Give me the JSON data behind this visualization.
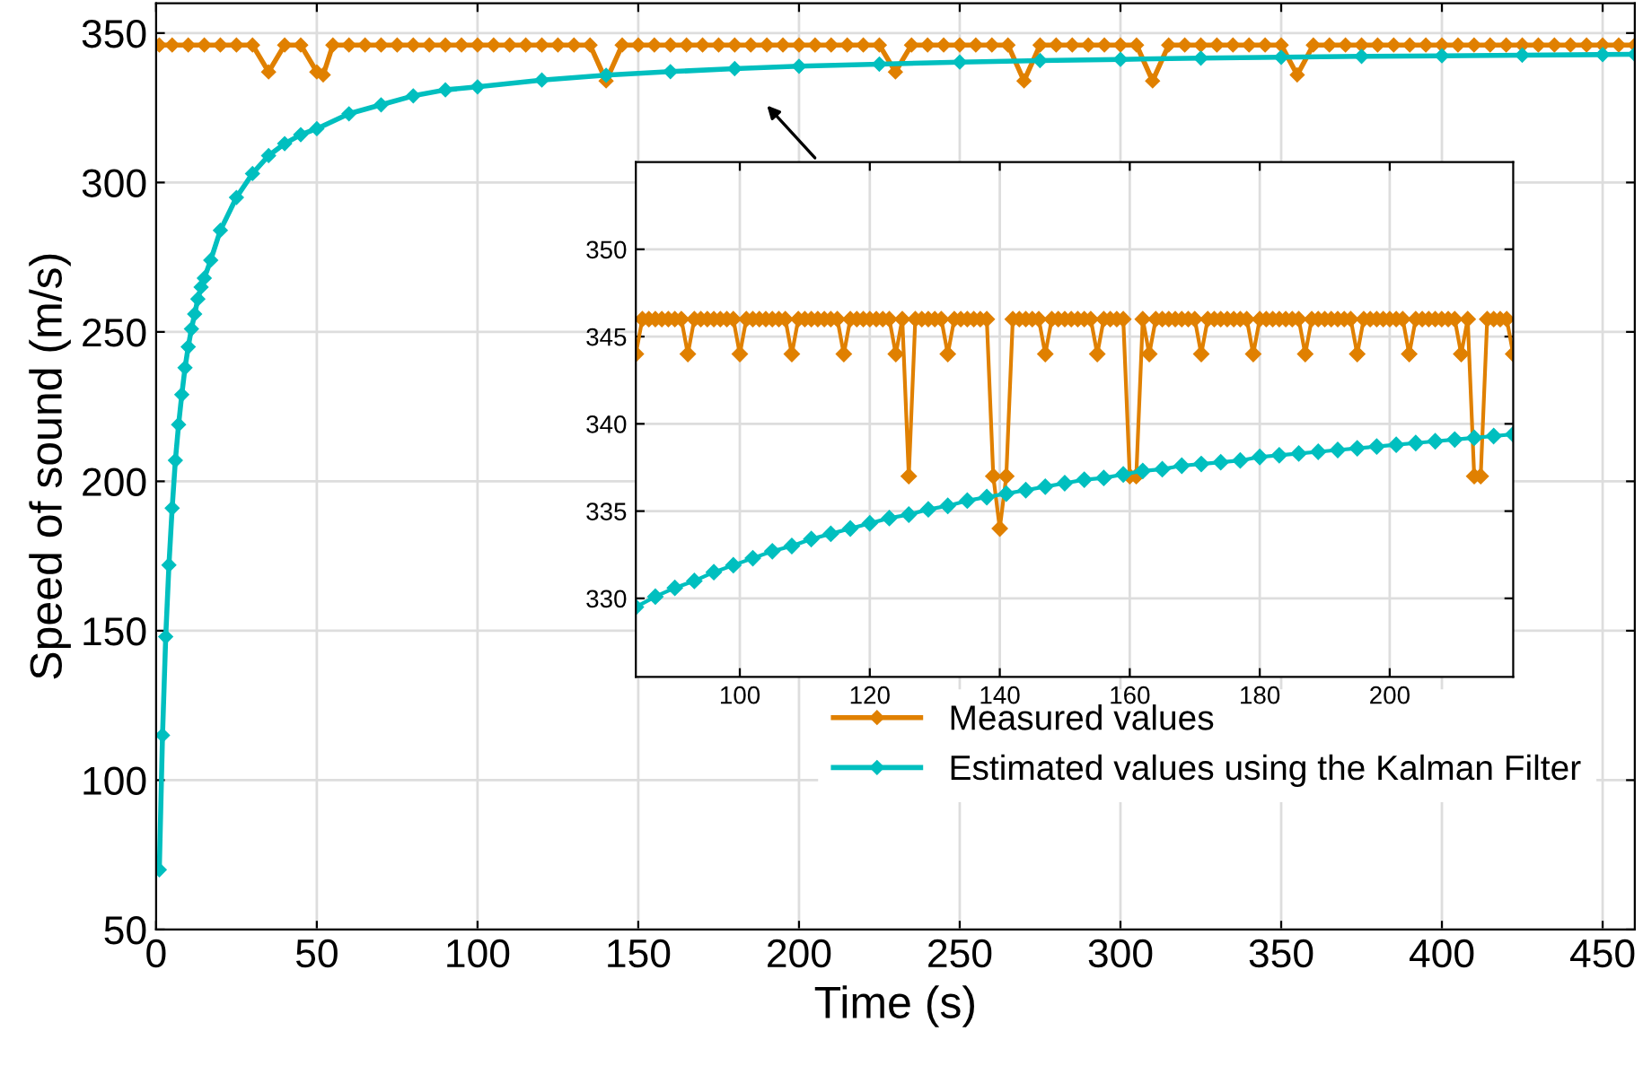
{
  "chart_data": [
    {
      "type": "line",
      "xlabel": "Time (s)",
      "ylabel": "Speed of sound (m/s)",
      "xlim": [
        0,
        460
      ],
      "ylim": [
        50,
        360
      ],
      "xticks": [
        0,
        50,
        100,
        150,
        200,
        250,
        300,
        350,
        400,
        450
      ],
      "yticks": [
        50,
        100,
        150,
        200,
        250,
        300,
        350
      ],
      "grid": true,
      "legend": "bottom right",
      "marker": "diamond",
      "line_style": "solid",
      "series": [
        {
          "name": "Measured values",
          "color": "#e08000",
          "x": [
            1,
            5,
            10,
            15,
            20,
            25,
            30,
            35,
            40,
            45,
            50,
            52,
            55,
            60,
            65,
            70,
            75,
            80,
            85,
            90,
            95,
            100,
            105,
            110,
            115,
            120,
            125,
            130,
            135,
            140,
            145,
            150,
            155,
            160,
            165,
            170,
            175,
            180,
            185,
            190,
            195,
            200,
            205,
            210,
            215,
            220,
            225,
            230,
            235,
            240,
            245,
            250,
            255,
            260,
            265,
            270,
            275,
            280,
            285,
            290,
            295,
            300,
            305,
            310,
            315,
            320,
            325,
            330,
            335,
            340,
            345,
            350,
            355,
            360,
            365,
            370,
            375,
            380,
            385,
            390,
            395,
            400,
            405,
            410,
            415,
            420,
            425,
            430,
            435,
            440,
            445,
            450,
            455,
            460
          ],
          "values": [
            346,
            346,
            346,
            346,
            346,
            346,
            346,
            337,
            346,
            346,
            337,
            336,
            346,
            346,
            346,
            346,
            346,
            346,
            346,
            346,
            346,
            346,
            346,
            346,
            346,
            346,
            346,
            346,
            346,
            334,
            346,
            346,
            346,
            346,
            346,
            346,
            346,
            346,
            346,
            346,
            346,
            346,
            346,
            346,
            346,
            346,
            346,
            337,
            346,
            346,
            346,
            346,
            346,
            346,
            346,
            334,
            346,
            346,
            346,
            346,
            346,
            346,
            346,
            334,
            346,
            346,
            346,
            346,
            346,
            346,
            346,
            346,
            336,
            346,
            346,
            346,
            346,
            346,
            346,
            346,
            346,
            346,
            346,
            346,
            346,
            346,
            346,
            346,
            346,
            346,
            346,
            346,
            346,
            346
          ]
        },
        {
          "name": "Estimated values using the Kalman Filter",
          "color": "#00bfbf",
          "x": [
            1,
            2,
            3,
            4,
            5,
            6,
            7,
            8,
            9,
            10,
            11,
            12,
            13,
            14,
            15,
            17,
            20,
            25,
            30,
            35,
            40,
            45,
            50,
            60,
            70,
            80,
            90,
            100,
            120,
            140,
            160,
            180,
            200,
            225,
            250,
            275,
            300,
            325,
            350,
            375,
            400,
            425,
            450,
            460
          ],
          "values": [
            70,
            115,
            148,
            172,
            191,
            207,
            219,
            229,
            238,
            245,
            251,
            256,
            261,
            265,
            268,
            274,
            284,
            295,
            303,
            309,
            313,
            316,
            318,
            323,
            326,
            329,
            331,
            332,
            334.3,
            335.9,
            337.1,
            338.1,
            338.9,
            339.6,
            340.3,
            340.8,
            341.2,
            341.6,
            341.9,
            342.2,
            342.4,
            342.6,
            342.8,
            342.9
          ]
        }
      ]
    },
    {
      "type": "line",
      "xlim": [
        84,
        219
      ],
      "ylim": [
        325.5,
        355
      ],
      "xticks": [
        100,
        120,
        140,
        160,
        180,
        200
      ],
      "yticks": [
        330,
        335,
        340,
        345,
        350
      ],
      "grid": true,
      "marker": "diamond",
      "line_style": "solid",
      "series": [
        {
          "color": "#e08000",
          "x": [
            84,
            85,
            86,
            87,
            88,
            89,
            90,
            91,
            92,
            93,
            94,
            95,
            96,
            97,
            98,
            99,
            100,
            101,
            102,
            103,
            104,
            105,
            106,
            107,
            108,
            109,
            110,
            111,
            112,
            113,
            114,
            115,
            116,
            117,
            118,
            119,
            120,
            121,
            122,
            123,
            124,
            125,
            126,
            127,
            128,
            129,
            130,
            131,
            132,
            133,
            134,
            135,
            136,
            137,
            138,
            139,
            140,
            141,
            142,
            143,
            144,
            145,
            146,
            147,
            148,
            149,
            150,
            151,
            152,
            153,
            154,
            155,
            156,
            157,
            158,
            159,
            160,
            161,
            162,
            163,
            164,
            165,
            166,
            167,
            168,
            169,
            170,
            171,
            172,
            173,
            174,
            175,
            176,
            177,
            178,
            179,
            180,
            181,
            182,
            183,
            184,
            185,
            186,
            187,
            188,
            189,
            190,
            191,
            192,
            193,
            194,
            195,
            196,
            197,
            198,
            199,
            200,
            201,
            202,
            203,
            204,
            205,
            206,
            207,
            208,
            209,
            210,
            211,
            212,
            213,
            214,
            215,
            216,
            217,
            218,
            219
          ],
          "values": [
            344,
            346,
            346,
            346,
            346,
            346,
            346,
            346,
            344,
            346,
            346,
            346,
            346,
            346,
            346,
            346,
            344,
            346,
            346,
            346,
            346,
            346,
            346,
            346,
            344,
            346,
            346,
            346,
            346,
            346,
            346,
            346,
            344,
            346,
            346,
            346,
            346,
            346,
            346,
            346,
            344,
            346,
            337,
            346,
            346,
            346,
            346,
            346,
            344,
            346,
            346,
            346,
            346,
            346,
            346,
            337,
            334,
            337,
            346,
            346,
            346,
            346,
            346,
            344,
            346,
            346,
            346,
            346,
            346,
            346,
            346,
            344,
            346,
            346,
            346,
            346,
            337,
            337,
            346,
            344,
            346,
            346,
            346,
            346,
            346,
            346,
            346,
            344,
            346,
            346,
            346,
            346,
            346,
            346,
            346,
            344,
            346,
            346,
            346,
            346,
            346,
            346,
            346,
            344,
            346,
            346,
            346,
            346,
            346,
            346,
            346,
            344,
            346,
            346,
            346,
            346,
            346,
            346,
            346,
            344,
            346,
            346,
            346,
            346,
            346,
            346,
            346,
            344,
            346,
            337,
            337,
            346,
            346,
            346,
            346,
            344
          ]
        },
        {
          "color": "#00bfbf",
          "x": [
            84,
            87,
            90,
            93,
            96,
            99,
            102,
            105,
            108,
            111,
            114,
            117,
            120,
            123,
            126,
            129,
            132,
            135,
            138,
            141,
            144,
            147,
            150,
            153,
            156,
            159,
            162,
            165,
            168,
            171,
            174,
            177,
            180,
            183,
            186,
            189,
            192,
            195,
            198,
            201,
            204,
            207,
            210,
            213,
            216,
            219
          ],
          "values": [
            329.5,
            330.1,
            330.6,
            331.0,
            331.5,
            331.9,
            332.3,
            332.7,
            333.0,
            333.4,
            333.7,
            334.0,
            334.3,
            334.6,
            334.8,
            335.1,
            335.3,
            335.6,
            335.8,
            336.0,
            336.2,
            336.4,
            336.6,
            336.8,
            336.9,
            337.1,
            337.3,
            337.4,
            337.6,
            337.7,
            337.8,
            337.9,
            338.1,
            338.2,
            338.3,
            338.4,
            338.5,
            338.6,
            338.7,
            338.8,
            338.9,
            339.0,
            339.1,
            339.2,
            339.3,
            339.4
          ]
        }
      ]
    }
  ]
}
